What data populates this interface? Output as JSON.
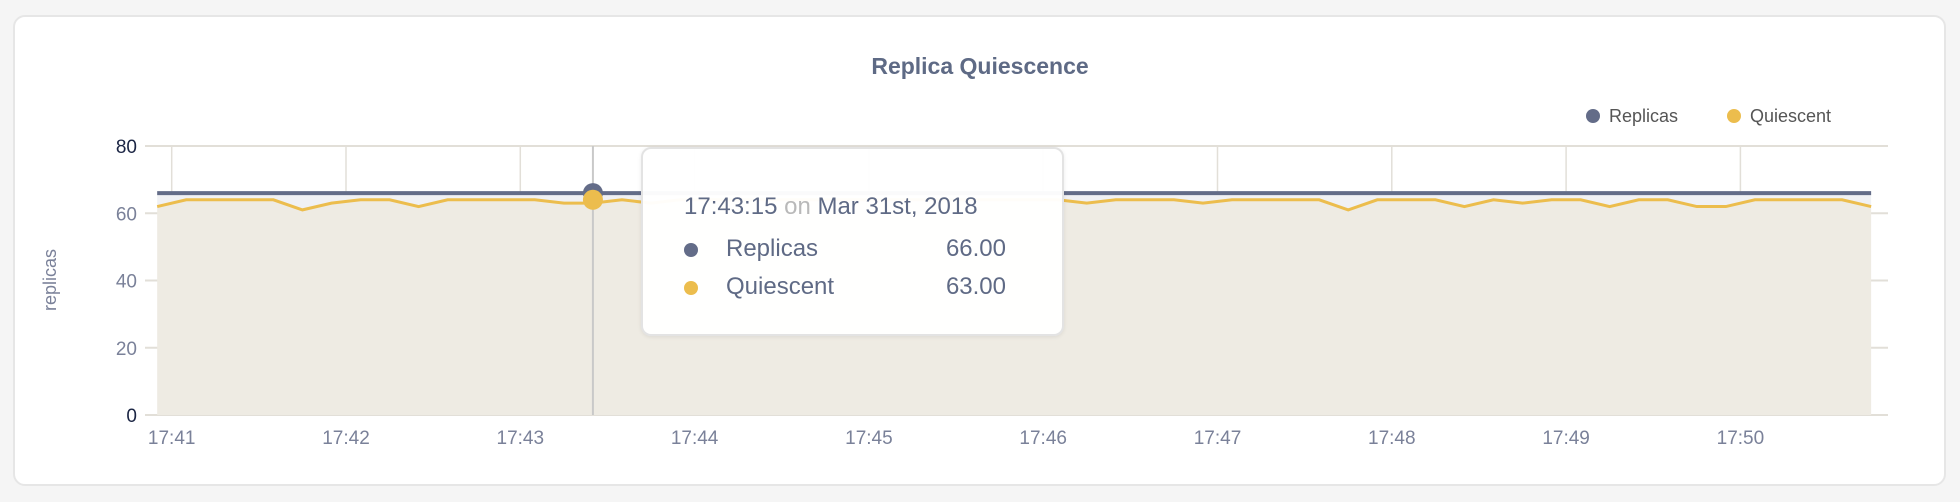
{
  "chart_data": {
    "type": "line",
    "title": "Replica Quiescence",
    "ylabel": "replicas",
    "xlabel": "",
    "ylim": [
      0,
      80
    ],
    "yticks": [
      "0",
      "20",
      "40",
      "60",
      "80"
    ],
    "xticks": [
      "17:41",
      "17:42",
      "17:43",
      "17:44",
      "17:45",
      "17:46",
      "17:47",
      "17:48",
      "17:49",
      "17:50"
    ],
    "x_start": "17:40:55",
    "x_interval_seconds": 10,
    "grid": true,
    "legend_placement": "top-right",
    "series": [
      {
        "name": "Replicas",
        "color": "#636c88",
        "values": [
          66,
          66,
          66,
          66,
          66,
          66,
          66,
          66,
          66,
          66,
          66,
          66,
          66,
          66,
          66,
          66,
          66,
          66,
          66,
          66,
          66,
          66,
          66,
          66,
          66,
          66,
          66,
          66,
          66,
          66,
          66,
          66,
          66,
          66,
          66,
          66,
          66,
          66,
          66,
          66,
          66,
          66,
          66,
          66,
          66,
          66,
          66,
          66,
          66,
          66,
          66,
          66,
          66,
          66,
          66,
          66,
          66,
          66,
          66,
          66
        ]
      },
      {
        "name": "Quiescent",
        "color": "#ecbd4d",
        "values": [
          62,
          64,
          64,
          64,
          64,
          61,
          63,
          64,
          64,
          62,
          64,
          64,
          64,
          64,
          63,
          63,
          64,
          63,
          64,
          64,
          64,
          64,
          64,
          64,
          64,
          64,
          64,
          64,
          64,
          64,
          64,
          64,
          63,
          64,
          64,
          64,
          63,
          64,
          64,
          64,
          64,
          61,
          64,
          64,
          64,
          62,
          64,
          63,
          64,
          64,
          62,
          64,
          64,
          62,
          62,
          64,
          64,
          64,
          64,
          62
        ]
      }
    ],
    "hover_index": 15,
    "tooltip": {
      "time": "17:43:15",
      "on": "on",
      "date": "Mar 31st, 2018",
      "rows": [
        {
          "label": "Replicas",
          "value": "66.00",
          "color": "#636c88"
        },
        {
          "label": "Quiescent",
          "value": "63.00",
          "color": "#ecbd4d"
        }
      ]
    }
  },
  "colors": {
    "area": "#eeebe3",
    "band": "#f0f1f4",
    "grid": "#e2dfd8",
    "text": "#5f6a85"
  }
}
